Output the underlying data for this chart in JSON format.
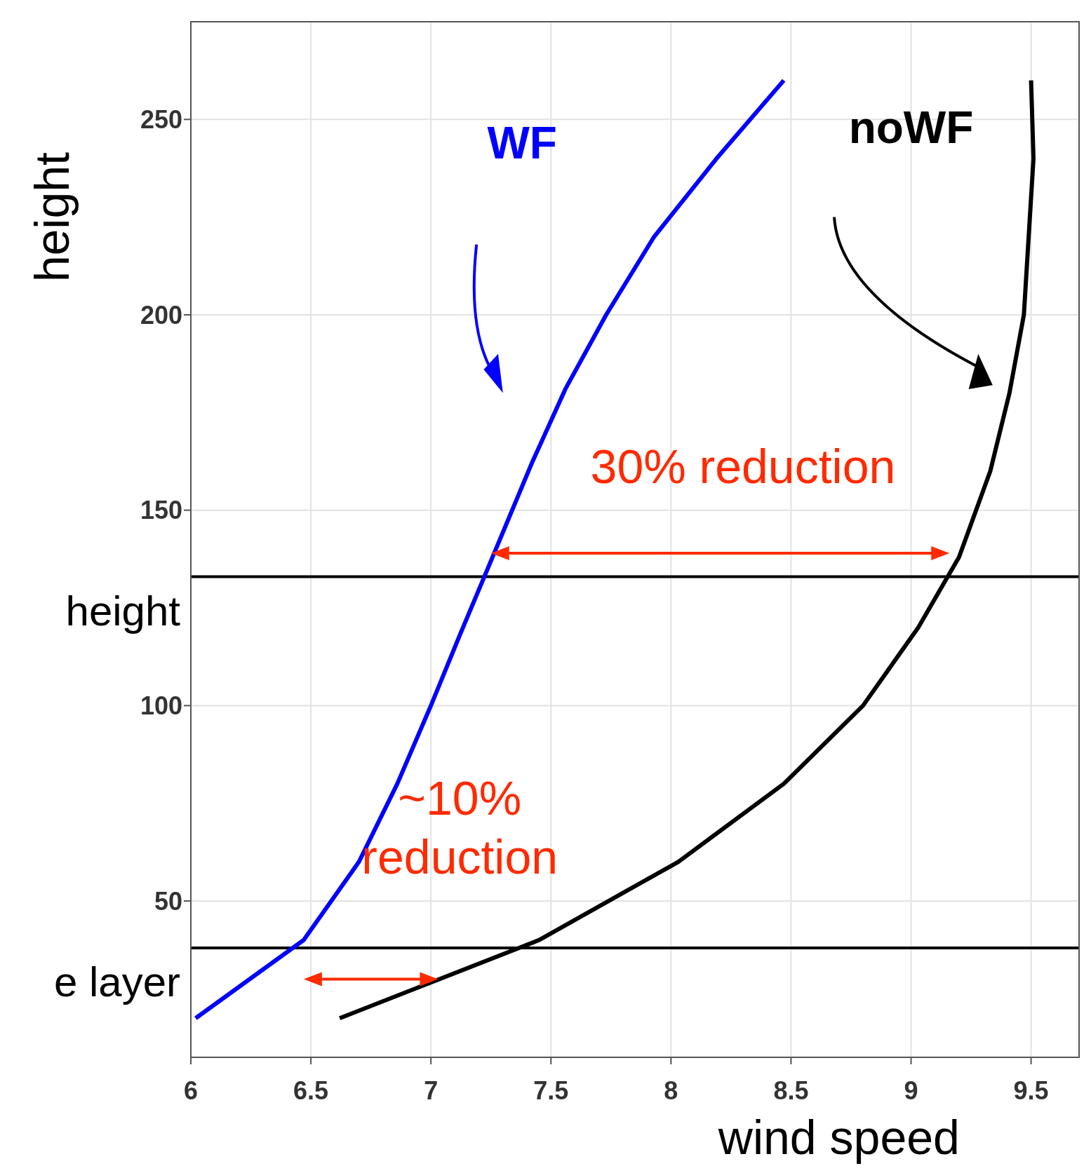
{
  "chart_data": {
    "type": "line",
    "xlabel": "wind speed",
    "ylabel": "height",
    "xlim": [
      6,
      9.7
    ],
    "xticks": [
      6,
      6.5,
      7,
      7.5,
      8,
      8.5,
      9,
      9.5
    ],
    "ylim": [
      10,
      275
    ],
    "yticks": [
      50,
      100,
      150,
      200,
      250
    ],
    "grid": true,
    "marker": "none",
    "line_style": "solid",
    "series": [
      {
        "name": "WF",
        "color": "#0000ff",
        "x": [
          6.02,
          6.47,
          6.7,
          6.86,
          7.0,
          7.12,
          7.25,
          7.42,
          7.56,
          7.73,
          7.93,
          8.19,
          8.47
        ],
        "values": [
          20,
          40,
          60,
          80,
          100,
          118,
          137,
          162,
          181,
          200,
          220,
          240,
          260
        ]
      },
      {
        "name": "noWF",
        "color": "#000000",
        "x": [
          6.62,
          7.45,
          8.03,
          8.47,
          8.8,
          9.03,
          9.2,
          9.33,
          9.41,
          9.47,
          9.49,
          9.51,
          9.5
        ],
        "values": [
          20,
          40,
          60,
          80,
          100,
          120,
          138,
          160,
          180,
          200,
          220,
          240,
          260
        ]
      }
    ],
    "ref_lines": [
      {
        "axis": "y",
        "value": 133,
        "label": "height",
        "color": "#000000"
      },
      {
        "axis": "y",
        "value": 38,
        "label": "e  layer",
        "color": "#000000"
      }
    ],
    "annotations": [
      {
        "text": "30% reduction",
        "x": 7.25,
        "y": 139
      },
      "~10% reduction"
    ]
  }
}
